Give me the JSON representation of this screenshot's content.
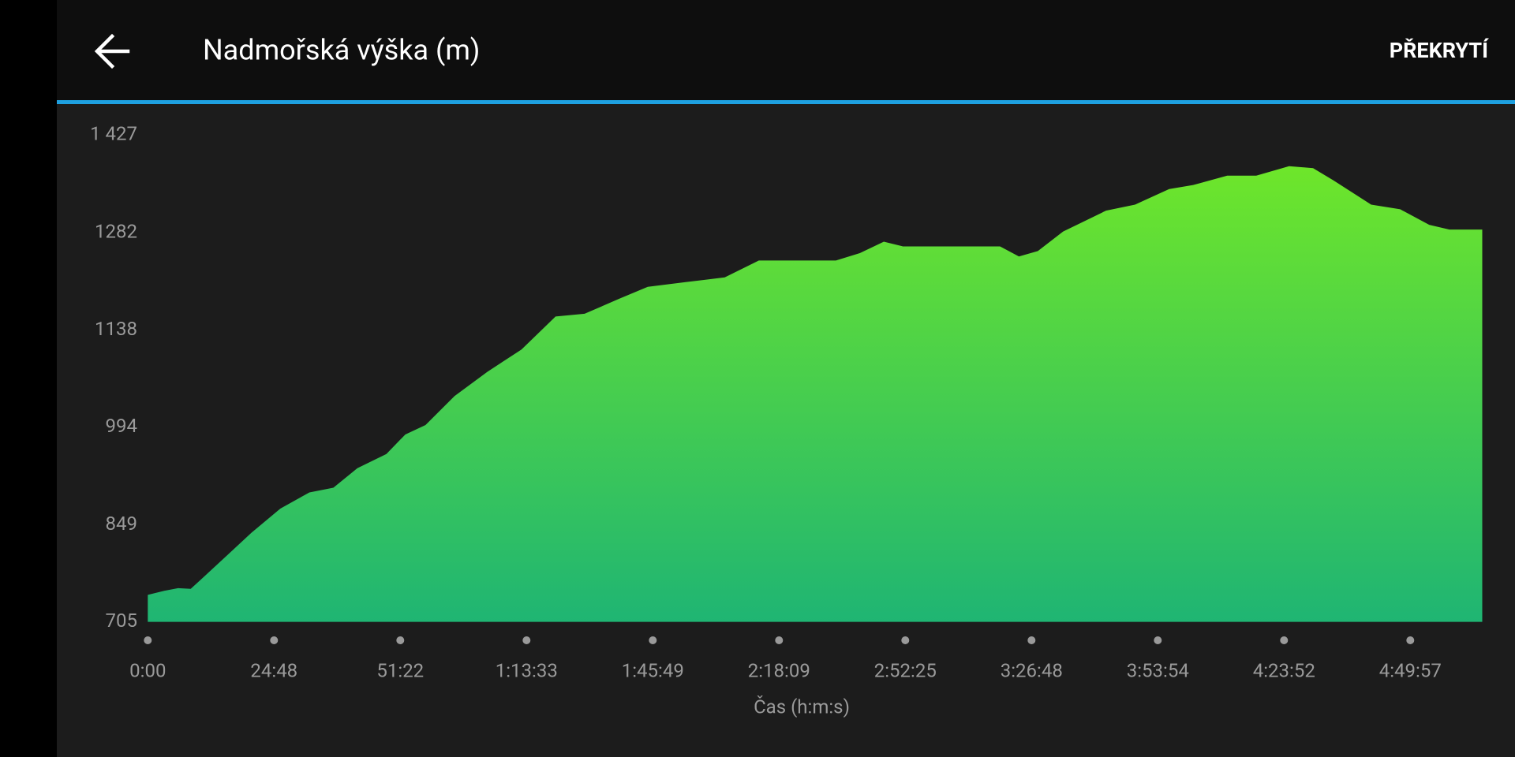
{
  "header": {
    "action": "PŘEKRYTÍ"
  },
  "chart_data": {
    "type": "area",
    "title": "Nadmořská výška (m)",
    "x_label": "Čas (h:m:s)",
    "x": [
      0,
      0.13,
      0.24,
      0.34,
      0.44,
      0.63,
      0.82,
      1.05,
      1.28,
      1.47,
      1.66,
      1.89,
      2.04,
      2.2,
      2.43,
      2.69,
      2.96,
      3.23,
      3.46,
      3.73,
      3.96,
      4.26,
      4.57,
      4.84,
      5.45,
      5.64,
      5.83,
      5.98,
      6.75,
      6.9,
      7.05,
      7.25,
      7.59,
      7.82,
      8.09,
      8.28,
      8.55,
      8.78,
      9.04,
      9.23,
      9.39,
      9.69,
      9.92,
      10.15,
      10.31,
      10.57
    ],
    "values": [
      745,
      751,
      755,
      754,
      771,
      804,
      837,
      873,
      897,
      904,
      933,
      954,
      983,
      997,
      1040,
      1076,
      1109,
      1158,
      1162,
      1184,
      1202,
      1209,
      1216,
      1241,
      1241,
      1252,
      1269,
      1262,
      1262,
      1247,
      1255,
      1284,
      1315,
      1324,
      1347,
      1353,
      1367,
      1367,
      1381,
      1378,
      1360,
      1324,
      1317,
      1294,
      1287,
      1287
    ],
    "color_top": "#6ee62a",
    "color_bottom": "#1fb573",
    "xlim": [
      0,
      10.57
    ],
    "xticks": [
      {
        "value": 0,
        "label": "0:00"
      },
      {
        "value": 1,
        "label": "24:48"
      },
      {
        "value": 2,
        "label": "51:22"
      },
      {
        "value": 3,
        "label": "1:13:33"
      },
      {
        "value": 4,
        "label": "1:45:49"
      },
      {
        "value": 5,
        "label": "2:18:09"
      },
      {
        "value": 6,
        "label": "2:52:25"
      },
      {
        "value": 7,
        "label": "3:26:48"
      },
      {
        "value": 8,
        "label": "3:53:54"
      },
      {
        "value": 9,
        "label": "4:23:52"
      },
      {
        "value": 10,
        "label": "4:49:57"
      }
    ],
    "ylim": [
      705,
      1427
    ],
    "yticks": [
      705,
      849,
      994,
      1138,
      1282,
      {
        "value": 1427,
        "label": "1 427"
      }
    ]
  }
}
